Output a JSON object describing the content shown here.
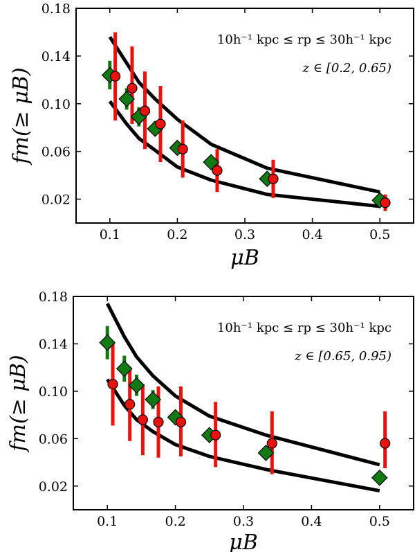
{
  "chart_data": [
    {
      "type": "scatter",
      "title": "",
      "xlabel": "μB",
      "ylabel": "fm(≥ μB)",
      "xlim": [
        0.05,
        0.55
      ],
      "ylim": [
        -0.0,
        0.18
      ],
      "xticks": [
        "0.1",
        "0.2",
        "0.3",
        "0.4",
        "0.5"
      ],
      "xtick_values": [
        0.1,
        0.2,
        0.3,
        0.4,
        0.5
      ],
      "yticks": [
        "0.02",
        "0.06",
        "0.10",
        "0.14",
        "0.18"
      ],
      "ytick_values": [
        0.02,
        0.06,
        0.1,
        0.14,
        0.18
      ],
      "annotation_line1": "10h⁻¹ kpc ≤ rp ≤ 30h⁻¹ kpc",
      "annotation_line2": "z ∈ [0.2, 0.65)",
      "band_upper": {
        "x": [
          0.1,
          0.125,
          0.143,
          0.167,
          0.2,
          0.25,
          0.333,
          0.5
        ],
        "y": [
          0.156,
          0.134,
          0.118,
          0.104,
          0.087,
          0.066,
          0.046,
          0.026
        ]
      },
      "band_lower": {
        "x": [
          0.1,
          0.125,
          0.143,
          0.167,
          0.2,
          0.25,
          0.333,
          0.5
        ],
        "y": [
          0.102,
          0.083,
          0.071,
          0.061,
          0.047,
          0.036,
          0.024,
          0.014
        ]
      },
      "series": [
        {
          "name": "green diamonds",
          "color": "#127a12",
          "marker": "diamond",
          "x": [
            0.1,
            0.125,
            0.143,
            0.167,
            0.2,
            0.25,
            0.333,
            0.5
          ],
          "y": [
            0.124,
            0.104,
            0.089,
            0.079,
            0.063,
            0.051,
            0.037,
            0.019
          ],
          "err": [
            0.012,
            0.009,
            0.008,
            0.006,
            0.005,
            0.005,
            0.004,
            0.003
          ]
        },
        {
          "name": "red circles",
          "color": "#e8120e",
          "marker": "circle",
          "x": [
            0.108,
            0.133,
            0.152,
            0.175,
            0.208,
            0.259,
            0.342,
            0.508
          ],
          "y": [
            0.123,
            0.113,
            0.094,
            0.083,
            0.062,
            0.044,
            0.037,
            0.017
          ],
          "err_low": [
            0.037,
            0.03,
            0.032,
            0.032,
            0.024,
            0.018,
            0.016,
            0.007
          ],
          "err_high": [
            0.037,
            0.035,
            0.033,
            0.032,
            0.024,
            0.018,
            0.016,
            0.007
          ]
        }
      ]
    },
    {
      "type": "scatter",
      "title": "",
      "xlabel": "μB",
      "ylabel": "fm(≥ μB)",
      "xlim": [
        0.05,
        0.55
      ],
      "ylim": [
        0.0,
        0.18
      ],
      "xticks": [
        "0.1",
        "0.2",
        "0.3",
        "0.4",
        "0.5"
      ],
      "xtick_values": [
        0.1,
        0.2,
        0.3,
        0.4,
        0.5
      ],
      "yticks": [
        "0.02",
        "0.06",
        "0.10",
        "0.14",
        "0.18"
      ],
      "ytick_values": [
        0.02,
        0.06,
        0.1,
        0.14,
        0.18
      ],
      "annotation_line1": "10h⁻¹ kpc ≤ rp ≤ 30h⁻¹ kpc",
      "annotation_line2": "z ∈ [0.65, 0.95)",
      "band_upper": {
        "x": [
          0.1,
          0.125,
          0.143,
          0.167,
          0.2,
          0.25,
          0.333,
          0.5
        ],
        "y": [
          0.174,
          0.146,
          0.129,
          0.113,
          0.096,
          0.079,
          0.063,
          0.038
        ]
      },
      "band_lower": {
        "x": [
          0.1,
          0.125,
          0.143,
          0.167,
          0.2,
          0.25,
          0.333,
          0.5
        ],
        "y": [
          0.11,
          0.088,
          0.076,
          0.066,
          0.055,
          0.045,
          0.034,
          0.016
        ]
      },
      "series": [
        {
          "name": "green diamonds",
          "color": "#127a12",
          "marker": "diamond",
          "x": [
            0.1,
            0.125,
            0.143,
            0.167,
            0.2,
            0.25,
            0.333,
            0.5
          ],
          "y": [
            0.141,
            0.119,
            0.105,
            0.093,
            0.078,
            0.063,
            0.048,
            0.027
          ],
          "err": [
            0.014,
            0.011,
            0.009,
            0.008,
            0.006,
            0.005,
            0.004,
            0.003
          ]
        },
        {
          "name": "red circles",
          "color": "#e8120e",
          "marker": "circle",
          "x": [
            0.108,
            0.133,
            0.152,
            0.175,
            0.208,
            0.259,
            0.342,
            0.508
          ],
          "y": [
            0.106,
            0.089,
            0.076,
            0.074,
            0.074,
            0.063,
            0.056,
            0.056
          ],
          "err_low": [
            0.035,
            0.031,
            0.03,
            0.03,
            0.029,
            0.027,
            0.026,
            0.021
          ],
          "err_high": [
            0.035,
            0.031,
            0.03,
            0.03,
            0.03,
            0.028,
            0.027,
            0.027
          ]
        }
      ]
    }
  ]
}
